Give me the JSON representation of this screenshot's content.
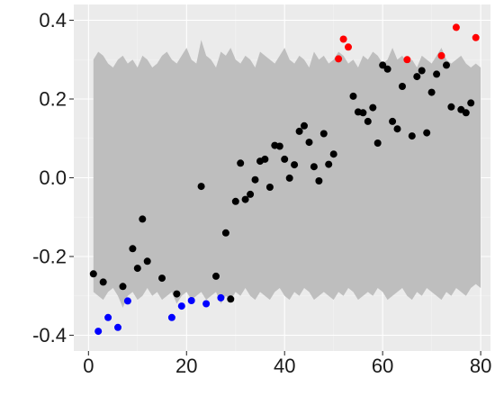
{
  "chart_data": {
    "type": "scatter",
    "title": "",
    "xlabel": "",
    "ylabel": "",
    "xlim": [
      -3,
      82
    ],
    "ylim": [
      -0.44,
      0.44
    ],
    "x_ticks": [
      0,
      20,
      40,
      60,
      80
    ],
    "x_tick_labels": [
      "0",
      "20",
      "40",
      "60",
      "80"
    ],
    "y_ticks": [
      -0.4,
      -0.2,
      0.0,
      0.2,
      0.4
    ],
    "y_tick_labels": [
      "-0.4",
      "-0.2",
      "0.0",
      "0.2",
      "0.4"
    ],
    "grid": true,
    "legend": "none",
    "colors": {
      "panel": "#ebebeb",
      "grid_major": "#ffffff",
      "grid_minor": "#f4f4f4",
      "band": "#bebebe",
      "point_default": "#000000",
      "point_low": "#0000ff",
      "point_high": "#ff0000"
    },
    "band": {
      "x": [
        1,
        2,
        3,
        4,
        5,
        6,
        7,
        8,
        9,
        10,
        11,
        12,
        13,
        14,
        15,
        16,
        17,
        18,
        19,
        20,
        21,
        22,
        23,
        24,
        25,
        26,
        27,
        28,
        29,
        30,
        31,
        32,
        33,
        34,
        35,
        36,
        37,
        38,
        39,
        40,
        41,
        42,
        43,
        44,
        45,
        46,
        47,
        48,
        49,
        50,
        51,
        52,
        53,
        54,
        55,
        56,
        57,
        58,
        59,
        60,
        61,
        62,
        63,
        64,
        65,
        66,
        67,
        68,
        69,
        70,
        71,
        72,
        73,
        74,
        75,
        76,
        77,
        78,
        79,
        80
      ],
      "upper": [
        0.3,
        0.32,
        0.31,
        0.29,
        0.28,
        0.3,
        0.31,
        0.29,
        0.3,
        0.28,
        0.31,
        0.3,
        0.28,
        0.29,
        0.31,
        0.32,
        0.3,
        0.29,
        0.31,
        0.33,
        0.3,
        0.29,
        0.35,
        0.31,
        0.3,
        0.28,
        0.32,
        0.31,
        0.33,
        0.3,
        0.29,
        0.31,
        0.3,
        0.28,
        0.32,
        0.31,
        0.3,
        0.29,
        0.31,
        0.33,
        0.3,
        0.29,
        0.31,
        0.3,
        0.28,
        0.32,
        0.3,
        0.31,
        0.29,
        0.3,
        0.32,
        0.31,
        0.29,
        0.3,
        0.28,
        0.31,
        0.3,
        0.32,
        0.31,
        0.29,
        0.3,
        0.33,
        0.3,
        0.31,
        0.29,
        0.3,
        0.28,
        0.31,
        0.3,
        0.29,
        0.31,
        0.33,
        0.3,
        0.29,
        0.3,
        0.31,
        0.29,
        0.28,
        0.29,
        0.28
      ],
      "lower": [
        -0.29,
        -0.3,
        -0.31,
        -0.29,
        -0.28,
        -0.3,
        -0.33,
        -0.3,
        -0.29,
        -0.31,
        -0.3,
        -0.28,
        -0.3,
        -0.29,
        -0.31,
        -0.3,
        -0.29,
        -0.32,
        -0.3,
        -0.29,
        -0.31,
        -0.3,
        -0.29,
        -0.31,
        -0.3,
        -0.29,
        -0.32,
        -0.3,
        -0.31,
        -0.29,
        -0.3,
        -0.28,
        -0.3,
        -0.31,
        -0.29,
        -0.3,
        -0.31,
        -0.29,
        -0.28,
        -0.3,
        -0.31,
        -0.29,
        -0.3,
        -0.28,
        -0.29,
        -0.31,
        -0.3,
        -0.29,
        -0.3,
        -0.31,
        -0.29,
        -0.3,
        -0.28,
        -0.29,
        -0.31,
        -0.3,
        -0.29,
        -0.3,
        -0.28,
        -0.29,
        -0.31,
        -0.3,
        -0.29,
        -0.28,
        -0.3,
        -0.31,
        -0.29,
        -0.3,
        -0.28,
        -0.29,
        -0.3,
        -0.31,
        -0.29,
        -0.3,
        -0.28,
        -0.29,
        -0.3,
        -0.28,
        -0.27,
        -0.28
      ]
    },
    "points": [
      {
        "x": 1,
        "y": -0.244,
        "group": "default"
      },
      {
        "x": 2,
        "y": -0.39,
        "group": "low"
      },
      {
        "x": 3,
        "y": -0.265,
        "group": "default"
      },
      {
        "x": 4,
        "y": -0.355,
        "group": "low"
      },
      {
        "x": 6,
        "y": -0.38,
        "group": "low"
      },
      {
        "x": 7,
        "y": -0.276,
        "group": "default"
      },
      {
        "x": 8,
        "y": -0.313,
        "group": "low"
      },
      {
        "x": 9,
        "y": -0.18,
        "group": "default"
      },
      {
        "x": 10,
        "y": -0.23,
        "group": "default"
      },
      {
        "x": 11,
        "y": -0.105,
        "group": "default"
      },
      {
        "x": 12,
        "y": -0.212,
        "group": "default"
      },
      {
        "x": 15,
        "y": -0.255,
        "group": "default"
      },
      {
        "x": 17,
        "y": -0.355,
        "group": "low"
      },
      {
        "x": 18,
        "y": -0.295,
        "group": "default"
      },
      {
        "x": 19,
        "y": -0.326,
        "group": "low"
      },
      {
        "x": 21,
        "y": -0.312,
        "group": "low"
      },
      {
        "x": 23,
        "y": -0.022,
        "group": "default"
      },
      {
        "x": 24,
        "y": -0.32,
        "group": "low"
      },
      {
        "x": 26,
        "y": -0.25,
        "group": "default"
      },
      {
        "x": 27,
        "y": -0.305,
        "group": "low"
      },
      {
        "x": 28,
        "y": -0.14,
        "group": "default"
      },
      {
        "x": 29,
        "y": -0.308,
        "group": "default"
      },
      {
        "x": 30,
        "y": -0.06,
        "group": "default"
      },
      {
        "x": 31,
        "y": 0.037,
        "group": "default"
      },
      {
        "x": 32,
        "y": -0.055,
        "group": "default"
      },
      {
        "x": 33,
        "y": -0.042,
        "group": "default"
      },
      {
        "x": 34,
        "y": -0.005,
        "group": "default"
      },
      {
        "x": 35,
        "y": 0.042,
        "group": "default"
      },
      {
        "x": 36,
        "y": 0.047,
        "group": "default"
      },
      {
        "x": 37,
        "y": -0.024,
        "group": "default"
      },
      {
        "x": 38,
        "y": 0.082,
        "group": "default"
      },
      {
        "x": 39,
        "y": 0.08,
        "group": "default"
      },
      {
        "x": 40,
        "y": 0.047,
        "group": "default"
      },
      {
        "x": 41,
        "y": -0.001,
        "group": "default"
      },
      {
        "x": 42,
        "y": 0.033,
        "group": "default"
      },
      {
        "x": 43,
        "y": 0.118,
        "group": "default"
      },
      {
        "x": 44,
        "y": 0.132,
        "group": "default"
      },
      {
        "x": 45,
        "y": 0.09,
        "group": "default"
      },
      {
        "x": 46,
        "y": 0.028,
        "group": "default"
      },
      {
        "x": 47,
        "y": -0.008,
        "group": "default"
      },
      {
        "x": 48,
        "y": 0.112,
        "group": "default"
      },
      {
        "x": 49,
        "y": 0.034,
        "group": "default"
      },
      {
        "x": 50,
        "y": 0.06,
        "group": "default"
      },
      {
        "x": 51,
        "y": 0.302,
        "group": "high"
      },
      {
        "x": 52,
        "y": 0.352,
        "group": "high"
      },
      {
        "x": 53,
        "y": 0.332,
        "group": "high"
      },
      {
        "x": 54,
        "y": 0.207,
        "group": "default"
      },
      {
        "x": 55,
        "y": 0.167,
        "group": "default"
      },
      {
        "x": 56,
        "y": 0.165,
        "group": "default"
      },
      {
        "x": 57,
        "y": 0.143,
        "group": "default"
      },
      {
        "x": 58,
        "y": 0.178,
        "group": "default"
      },
      {
        "x": 59,
        "y": 0.088,
        "group": "default"
      },
      {
        "x": 60,
        "y": 0.286,
        "group": "default"
      },
      {
        "x": 61,
        "y": 0.276,
        "group": "default"
      },
      {
        "x": 62,
        "y": 0.143,
        "group": "default"
      },
      {
        "x": 63,
        "y": 0.124,
        "group": "default"
      },
      {
        "x": 64,
        "y": 0.232,
        "group": "default"
      },
      {
        "x": 65,
        "y": 0.3,
        "group": "high"
      },
      {
        "x": 66,
        "y": 0.106,
        "group": "default"
      },
      {
        "x": 67,
        "y": 0.257,
        "group": "default"
      },
      {
        "x": 68,
        "y": 0.272,
        "group": "default"
      },
      {
        "x": 69,
        "y": 0.114,
        "group": "default"
      },
      {
        "x": 70,
        "y": 0.217,
        "group": "default"
      },
      {
        "x": 71,
        "y": 0.263,
        "group": "default"
      },
      {
        "x": 72,
        "y": 0.31,
        "group": "high"
      },
      {
        "x": 73,
        "y": 0.286,
        "group": "default"
      },
      {
        "x": 74,
        "y": 0.18,
        "group": "default"
      },
      {
        "x": 75,
        "y": 0.382,
        "group": "high"
      },
      {
        "x": 76,
        "y": 0.173,
        "group": "default"
      },
      {
        "x": 77,
        "y": 0.165,
        "group": "default"
      },
      {
        "x": 78,
        "y": 0.19,
        "group": "default"
      },
      {
        "x": 79,
        "y": 0.356,
        "group": "high"
      }
    ]
  }
}
